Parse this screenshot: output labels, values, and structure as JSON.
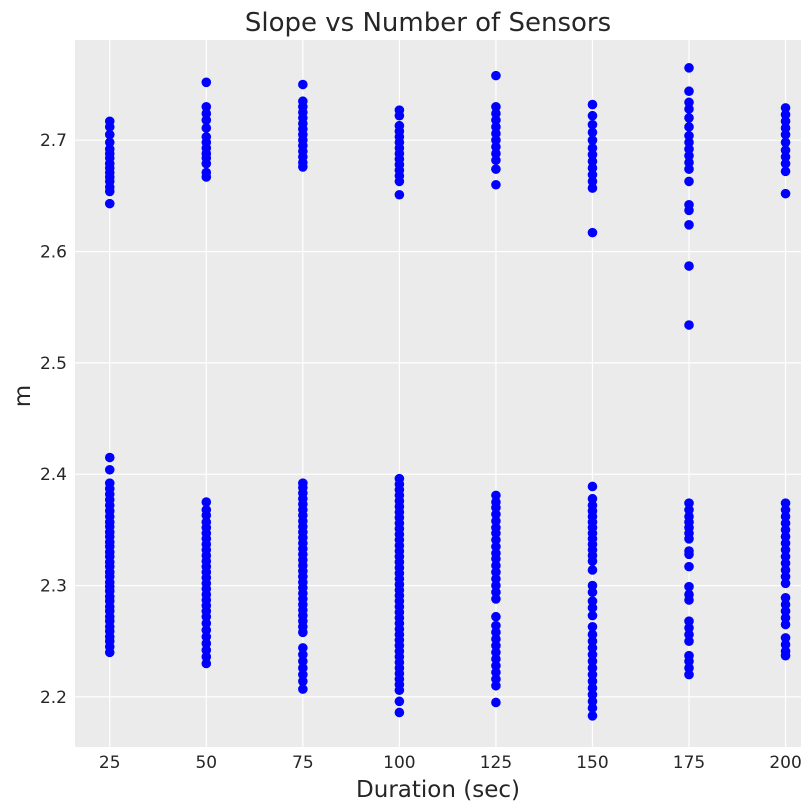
{
  "chart_data": {
    "type": "scatter",
    "title": "Slope vs Number of Sensors",
    "xlabel": "Duration (sec)",
    "ylabel": "m",
    "xlim": [
      16,
      204
    ],
    "ylim": [
      2.155,
      2.79
    ],
    "x_ticks": [
      25,
      50,
      75,
      100,
      125,
      150,
      175,
      200
    ],
    "y_ticks": [
      2.2,
      2.3,
      2.4,
      2.5,
      2.6,
      2.7
    ],
    "y_tick_labels": [
      "2.2",
      "2.3",
      "2.4",
      "2.5",
      "2.6",
      "2.7"
    ],
    "grid": true,
    "marker_color": "#0000ff",
    "background_color": "#ebebeb",
    "series": [
      {
        "x": 25,
        "y": [
          2.717,
          2.712,
          2.705,
          2.698,
          2.692,
          2.688,
          2.684,
          2.679,
          2.675,
          2.671,
          2.667,
          2.663,
          2.658,
          2.654,
          2.643,
          2.415,
          2.404,
          2.392,
          2.387,
          2.382,
          2.377,
          2.372,
          2.367,
          2.362,
          2.357,
          2.353,
          2.348,
          2.344,
          2.339,
          2.335,
          2.33,
          2.326,
          2.321,
          2.317,
          2.312,
          2.308,
          2.303,
          2.299,
          2.295,
          2.29,
          2.286,
          2.281,
          2.277,
          2.272,
          2.268,
          2.263,
          2.259,
          2.254,
          2.25,
          2.245,
          2.24
        ]
      },
      {
        "x": 50,
        "y": [
          2.752,
          2.73,
          2.724,
          2.718,
          2.711,
          2.703,
          2.698,
          2.693,
          2.688,
          2.684,
          2.679,
          2.671,
          2.667,
          2.375,
          2.368,
          2.363,
          2.357,
          2.352,
          2.347,
          2.342,
          2.337,
          2.332,
          2.327,
          2.322,
          2.317,
          2.312,
          2.307,
          2.302,
          2.297,
          2.292,
          2.287,
          2.282,
          2.277,
          2.272,
          2.266,
          2.26,
          2.254,
          2.248,
          2.242,
          2.236,
          2.23
        ]
      },
      {
        "x": 75,
        "y": [
          2.75,
          2.735,
          2.73,
          2.725,
          2.72,
          2.715,
          2.71,
          2.705,
          2.7,
          2.695,
          2.69,
          2.685,
          2.68,
          2.676,
          2.392,
          2.388,
          2.383,
          2.378,
          2.373,
          2.368,
          2.363,
          2.358,
          2.353,
          2.348,
          2.343,
          2.338,
          2.333,
          2.328,
          2.323,
          2.318,
          2.313,
          2.308,
          2.303,
          2.298,
          2.293,
          2.288,
          2.283,
          2.278,
          2.273,
          2.268,
          2.263,
          2.258,
          2.244,
          2.238,
          2.232,
          2.226,
          2.22,
          2.214,
          2.207
        ]
      },
      {
        "x": 100,
        "y": [
          2.727,
          2.722,
          2.713,
          2.708,
          2.703,
          2.698,
          2.693,
          2.688,
          2.683,
          2.678,
          2.673,
          2.668,
          2.663,
          2.651,
          2.396,
          2.391,
          2.386,
          2.381,
          2.376,
          2.371,
          2.366,
          2.361,
          2.356,
          2.351,
          2.346,
          2.341,
          2.336,
          2.331,
          2.326,
          2.321,
          2.316,
          2.311,
          2.306,
          2.301,
          2.296,
          2.291,
          2.286,
          2.281,
          2.276,
          2.271,
          2.266,
          2.261,
          2.256,
          2.251,
          2.246,
          2.241,
          2.236,
          2.231,
          2.226,
          2.221,
          2.216,
          2.211,
          2.206,
          2.196,
          2.186
        ]
      },
      {
        "x": 125,
        "y": [
          2.758,
          2.73,
          2.724,
          2.718,
          2.712,
          2.706,
          2.7,
          2.694,
          2.688,
          2.682,
          2.674,
          2.66,
          2.381,
          2.375,
          2.37,
          2.364,
          2.358,
          2.352,
          2.347,
          2.341,
          2.335,
          2.329,
          2.324,
          2.318,
          2.312,
          2.306,
          2.3,
          2.294,
          2.288,
          2.272,
          2.264,
          2.258,
          2.252,
          2.246,
          2.24,
          2.234,
          2.228,
          2.222,
          2.216,
          2.21,
          2.195
        ]
      },
      {
        "x": 150,
        "y": [
          2.732,
          2.722,
          2.714,
          2.707,
          2.7,
          2.693,
          2.687,
          2.681,
          2.675,
          2.669,
          2.663,
          2.657,
          2.617,
          2.389,
          2.378,
          2.372,
          2.367,
          2.362,
          2.357,
          2.352,
          2.347,
          2.342,
          2.337,
          2.332,
          2.327,
          2.322,
          2.314,
          2.3,
          2.294,
          2.286,
          2.28,
          2.273,
          2.263,
          2.256,
          2.25,
          2.244,
          2.238,
          2.232,
          2.226,
          2.22,
          2.214,
          2.208,
          2.202,
          2.196,
          2.19,
          2.183
        ]
      },
      {
        "x": 175,
        "y": [
          2.765,
          2.744,
          2.734,
          2.728,
          2.72,
          2.712,
          2.704,
          2.698,
          2.692,
          2.686,
          2.68,
          2.674,
          2.663,
          2.642,
          2.637,
          2.624,
          2.587,
          2.534,
          2.374,
          2.368,
          2.362,
          2.357,
          2.352,
          2.347,
          2.342,
          2.331,
          2.328,
          2.317,
          2.299,
          2.292,
          2.287,
          2.268,
          2.262,
          2.256,
          2.25,
          2.237,
          2.232,
          2.226,
          2.22
        ]
      },
      {
        "x": 200,
        "y": [
          2.729,
          2.723,
          2.717,
          2.711,
          2.705,
          2.698,
          2.691,
          2.685,
          2.679,
          2.672,
          2.652,
          2.374,
          2.368,
          2.362,
          2.356,
          2.35,
          2.344,
          2.338,
          2.332,
          2.326,
          2.32,
          2.314,
          2.308,
          2.302,
          2.289,
          2.283,
          2.277,
          2.271,
          2.265,
          2.253,
          2.247,
          2.241,
          2.237
        ]
      }
    ]
  }
}
